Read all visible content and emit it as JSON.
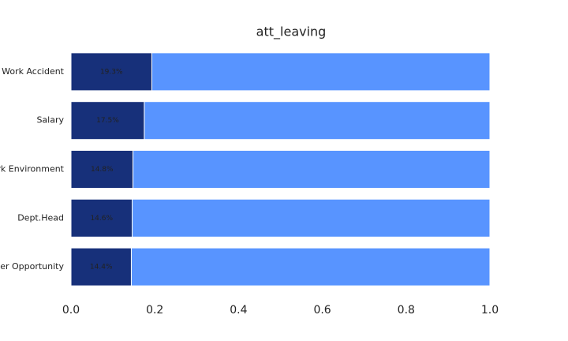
{
  "chart_data": {
    "type": "stacked-barh",
    "title": "att_leaving",
    "categories": [
      "Work Accident",
      "Salary",
      "Work Environment",
      "Dept.Head",
      "Better Opportunity"
    ],
    "series": [
      {
        "color": "#17307a",
        "values": [
          0.193,
          0.175,
          0.148,
          0.146,
          0.144
        ],
        "value_labels": [
          "19.3%",
          "17.5%",
          "14.8%",
          "14.6%",
          "14.4%"
        ]
      },
      {
        "color": "#5894ff",
        "values": [
          0.807,
          0.825,
          0.852,
          0.854,
          0.856
        ]
      }
    ],
    "xlim": [
      0,
      1
    ],
    "xticks": [
      {
        "value": 0,
        "label": "0.0"
      },
      0.2,
      0.4,
      0.6,
      0.8,
      {
        "value": 1,
        "label": "1.0"
      }
    ],
    "grid": false
  }
}
